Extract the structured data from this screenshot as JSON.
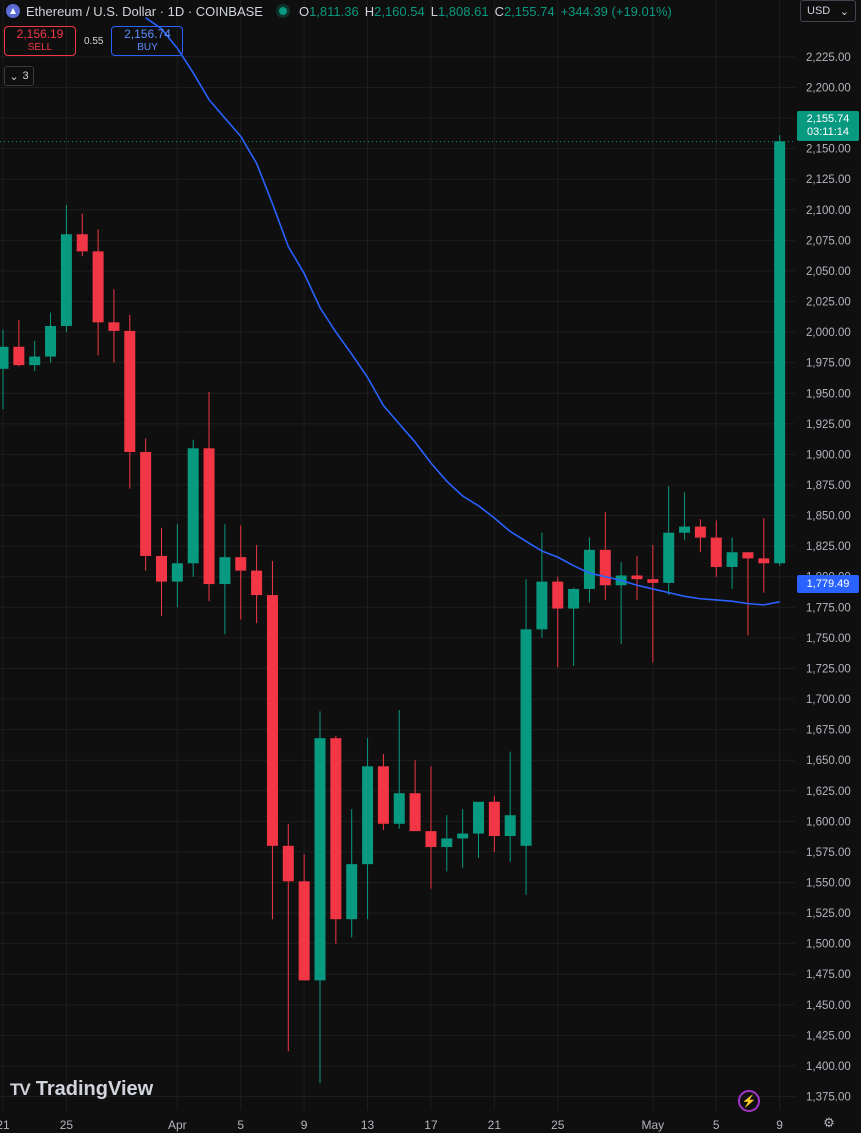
{
  "header": {
    "title": "Ethereum / U.S. Dollar · 1D · COINBASE",
    "ohlc": [
      {
        "key": "O",
        "value": "1,811.36"
      },
      {
        "key": "H",
        "value": "2,160.54"
      },
      {
        "key": "L",
        "value": "1,808.61"
      },
      {
        "key": "C",
        "value": "2,155.74"
      }
    ],
    "change": "+344.39 (+19.01%)"
  },
  "trade": {
    "sell_price": "2,156.19",
    "sell_label": "SELL",
    "spread": "0.55",
    "buy_price": "2,156.74",
    "buy_label": "BUY"
  },
  "indicators_toggle": {
    "count": "3"
  },
  "currency": {
    "label": "USD"
  },
  "price_labels": {
    "last_price": "2,155.74",
    "countdown": "03:11:14",
    "ma_value": "1,779.49"
  },
  "brand": {
    "name": "TradingView"
  },
  "colors": {
    "up": "#089981",
    "down": "#f23645",
    "ma": "#2962ff",
    "background": "#0f0f0f",
    "grid": "#1e1e1e"
  },
  "chart_data": {
    "type": "candlestick",
    "y_ticks": [
      "1,375.00",
      "1,400.00",
      "1,425.00",
      "1,450.00",
      "1,475.00",
      "1,500.00",
      "1,525.00",
      "1,550.00",
      "1,575.00",
      "1,600.00",
      "1,625.00",
      "1,650.00",
      "1,675.00",
      "1,700.00",
      "1,725.00",
      "1,750.00",
      "1,775.00",
      "1,800.00",
      "1,825.00",
      "1,850.00",
      "1,875.00",
      "1,900.00",
      "1,925.00",
      "1,950.00",
      "1,975.00",
      "2,000.00",
      "2,025.00",
      "2,050.00",
      "2,075.00",
      "2,100.00",
      "2,125.00",
      "2,150.00",
      "2,175.00",
      "2,200.00",
      "2,225.00"
    ],
    "ylim": [
      1364,
      2247
    ],
    "x_ticks": [
      {
        "label": "21",
        "index": 0
      },
      {
        "label": "25",
        "index": 4
      },
      {
        "label": "Apr",
        "index": 11
      },
      {
        "label": "5",
        "index": 15
      },
      {
        "label": "9",
        "index": 19
      },
      {
        "label": "13",
        "index": 23
      },
      {
        "label": "17",
        "index": 27
      },
      {
        "label": "21",
        "index": 31
      },
      {
        "label": "25",
        "index": 35
      },
      {
        "label": "May",
        "index": 41
      },
      {
        "label": "5",
        "index": 45
      },
      {
        "label": "9",
        "index": 49
      }
    ],
    "candles": [
      {
        "o": 1970,
        "h": 2002,
        "l": 1937,
        "c": 1988
      },
      {
        "o": 1988,
        "h": 2010,
        "l": 1972,
        "c": 1973
      },
      {
        "o": 1973,
        "h": 1993,
        "l": 1968,
        "c": 1980
      },
      {
        "o": 1980,
        "h": 2016,
        "l": 1975,
        "c": 2005
      },
      {
        "o": 2005,
        "h": 2104,
        "l": 2000,
        "c": 2080
      },
      {
        "o": 2080,
        "h": 2097,
        "l": 2062,
        "c": 2066
      },
      {
        "o": 2066,
        "h": 2084,
        "l": 1981,
        "c": 2008
      },
      {
        "o": 2008,
        "h": 2035,
        "l": 1975,
        "c": 2001
      },
      {
        "o": 2001,
        "h": 2014,
        "l": 1872,
        "c": 1902
      },
      {
        "o": 1902,
        "h": 1913,
        "l": 1805,
        "c": 1817
      },
      {
        "o": 1817,
        "h": 1840,
        "l": 1768,
        "c": 1796
      },
      {
        "o": 1796,
        "h": 1843,
        "l": 1775,
        "c": 1811
      },
      {
        "o": 1811,
        "h": 1912,
        "l": 1800,
        "c": 1905
      },
      {
        "o": 1905,
        "h": 1951,
        "l": 1780,
        "c": 1794
      },
      {
        "o": 1794,
        "h": 1843,
        "l": 1753,
        "c": 1816
      },
      {
        "o": 1816,
        "h": 1842,
        "l": 1765,
        "c": 1805
      },
      {
        "o": 1805,
        "h": 1826,
        "l": 1762,
        "c": 1785
      },
      {
        "o": 1785,
        "h": 1813,
        "l": 1520,
        "c": 1580
      },
      {
        "o": 1580,
        "h": 1598,
        "l": 1412,
        "c": 1551
      },
      {
        "o": 1551,
        "h": 1573,
        "l": 1470,
        "c": 1470
      },
      {
        "o": 1470,
        "h": 1690,
        "l": 1386,
        "c": 1668
      },
      {
        "o": 1668,
        "h": 1670,
        "l": 1500,
        "c": 1520
      },
      {
        "o": 1520,
        "h": 1610,
        "l": 1505,
        "c": 1565
      },
      {
        "o": 1565,
        "h": 1668,
        "l": 1520,
        "c": 1645
      },
      {
        "o": 1645,
        "h": 1655,
        "l": 1593,
        "c": 1598
      },
      {
        "o": 1598,
        "h": 1691,
        "l": 1594,
        "c": 1623
      },
      {
        "o": 1623,
        "h": 1650,
        "l": 1595,
        "c": 1592
      },
      {
        "o": 1592,
        "h": 1645,
        "l": 1545,
        "c": 1579
      },
      {
        "o": 1579,
        "h": 1605,
        "l": 1559,
        "c": 1586
      },
      {
        "o": 1586,
        "h": 1610,
        "l": 1562,
        "c": 1590
      },
      {
        "o": 1590,
        "h": 1615,
        "l": 1570,
        "c": 1616
      },
      {
        "o": 1616,
        "h": 1621,
        "l": 1575,
        "c": 1588
      },
      {
        "o": 1588,
        "h": 1657,
        "l": 1567,
        "c": 1605
      },
      {
        "o": 1580,
        "h": 1798,
        "l": 1540,
        "c": 1757
      },
      {
        "o": 1757,
        "h": 1836,
        "l": 1750,
        "c": 1796
      },
      {
        "o": 1796,
        "h": 1800,
        "l": 1726,
        "c": 1774
      },
      {
        "o": 1774,
        "h": 1791,
        "l": 1727,
        "c": 1790
      },
      {
        "o": 1790,
        "h": 1832,
        "l": 1779,
        "c": 1822
      },
      {
        "o": 1822,
        "h": 1853,
        "l": 1781,
        "c": 1793
      },
      {
        "o": 1793,
        "h": 1812,
        "l": 1745,
        "c": 1801
      },
      {
        "o": 1801,
        "h": 1817,
        "l": 1781,
        "c": 1798
      },
      {
        "o": 1798,
        "h": 1826,
        "l": 1730,
        "c": 1795
      },
      {
        "o": 1795,
        "h": 1874,
        "l": 1785,
        "c": 1836
      },
      {
        "o": 1836,
        "h": 1869,
        "l": 1830,
        "c": 1841
      },
      {
        "o": 1841,
        "h": 1847,
        "l": 1820,
        "c": 1832
      },
      {
        "o": 1832,
        "h": 1846,
        "l": 1800,
        "c": 1808
      },
      {
        "o": 1808,
        "h": 1832,
        "l": 1790,
        "c": 1820
      },
      {
        "o": 1820,
        "h": 1820,
        "l": 1752,
        "c": 1815
      },
      {
        "o": 1815,
        "h": 1848,
        "l": 1787,
        "c": 1811
      },
      {
        "o": 1811,
        "h": 2161,
        "l": 1809,
        "c": 2156
      }
    ],
    "ma_series": {
      "values": [
        2257,
        2248,
        2232,
        2212,
        2190,
        2175,
        2160,
        2138,
        2105,
        2070,
        2048,
        2020,
        2000,
        1982,
        1963,
        1940,
        1925,
        1910,
        1893,
        1878,
        1866,
        1858,
        1848,
        1837,
        1829,
        1821,
        1816,
        1809,
        1803,
        1800,
        1797,
        1793,
        1790,
        1787,
        1784,
        1782,
        1781,
        1780,
        1778,
        1777,
        1779.5
      ]
    },
    "last_price": 2155.74,
    "xlabel": "",
    "ylabel": ""
  }
}
